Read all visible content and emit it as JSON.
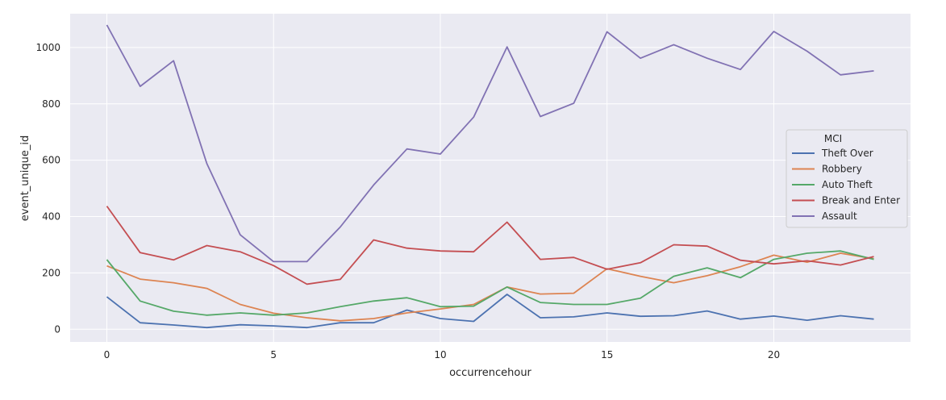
{
  "chart_data": {
    "type": "line",
    "xlabel": "occurrencehour",
    "ylabel": "event_unique_id",
    "xlim": [
      -1.1,
      24.1
    ],
    "ylim": [
      -45,
      1120
    ],
    "xticks": [
      0,
      5,
      10,
      15,
      20
    ],
    "yticks": [
      0,
      200,
      400,
      600,
      800,
      1000
    ],
    "grid": true,
    "legend": {
      "title": "MCI",
      "placement": "right"
    },
    "x": [
      0,
      1,
      2,
      3,
      4,
      5,
      6,
      7,
      8,
      9,
      10,
      11,
      12,
      13,
      14,
      15,
      16,
      17,
      18,
      19,
      20,
      21,
      22,
      23
    ],
    "series": [
      {
        "name": "Theft Over",
        "color": "#4c72b0",
        "values": [
          115,
          23,
          15,
          6,
          16,
          12,
          6,
          23,
          23,
          68,
          38,
          28,
          124,
          41,
          44,
          58,
          46,
          48,
          65,
          36,
          47,
          32,
          48,
          36
        ]
      },
      {
        "name": "Robbery",
        "color": "#dd8452",
        "values": [
          225,
          178,
          165,
          145,
          88,
          57,
          41,
          30,
          38,
          58,
          72,
          88,
          150,
          125,
          128,
          215,
          188,
          165,
          190,
          222,
          263,
          238,
          270,
          250
        ]
      },
      {
        "name": "Auto Theft",
        "color": "#55a868",
        "values": [
          247,
          100,
          64,
          50,
          58,
          50,
          58,
          80,
          100,
          112,
          80,
          82,
          150,
          95,
          88,
          88,
          110,
          188,
          218,
          183,
          248,
          270,
          278,
          248
        ]
      },
      {
        "name": "Break and Enter",
        "color": "#c44e52",
        "values": [
          437,
          272,
          246,
          297,
          275,
          226,
          160,
          177,
          317,
          288,
          278,
          275,
          380,
          248,
          255,
          213,
          236,
          300,
          295,
          245,
          232,
          243,
          228,
          258
        ]
      },
      {
        "name": "Assault",
        "color": "#8172b3",
        "values": [
          1080,
          862,
          953,
          588,
          335,
          240,
          240,
          363,
          512,
          640,
          622,
          753,
          1002,
          755,
          802,
          1056,
          962,
          1010,
          962,
          922,
          1057,
          987,
          903,
          917
        ]
      }
    ]
  }
}
